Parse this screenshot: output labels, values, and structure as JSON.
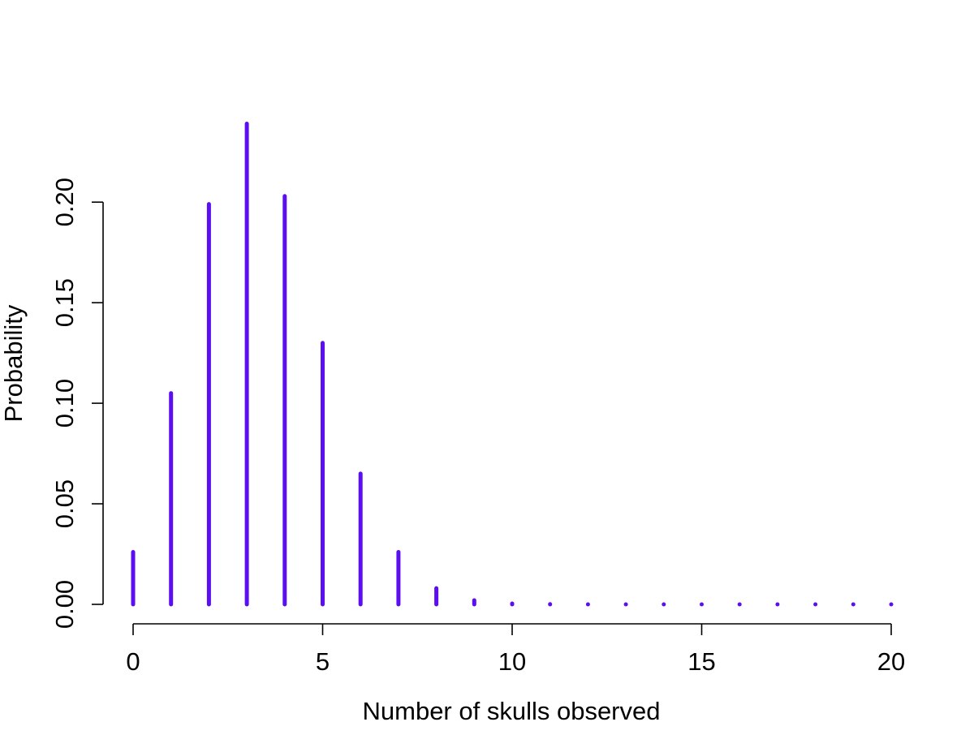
{
  "chart_data": {
    "type": "bar",
    "title": "",
    "xlabel": "Number of skulls observed",
    "ylabel": "Probability",
    "x": [
      0,
      1,
      2,
      3,
      4,
      5,
      6,
      7,
      8,
      9,
      10,
      11,
      12,
      13,
      14,
      15,
      16,
      17,
      18,
      19,
      20
    ],
    "values": [
      0.026,
      0.105,
      0.199,
      0.239,
      0.203,
      0.13,
      0.065,
      0.026,
      0.008,
      0.002,
      0.0004,
      0.0001,
      0.0,
      0.0,
      0.0,
      0.0,
      0.0,
      0.0,
      0.0,
      0.0,
      0.0
    ],
    "xlim": [
      0,
      20
    ],
    "ylim": [
      0,
      0.24
    ],
    "xticks": [
      0,
      5,
      10,
      15,
      20
    ],
    "xtick_labels": [
      "0",
      "5",
      "10",
      "15",
      "20"
    ],
    "yticks": [
      0.0,
      0.05,
      0.1,
      0.15,
      0.2
    ],
    "ytick_labels": [
      "0.00",
      "0.05",
      "0.10",
      "0.15",
      "0.20"
    ],
    "grid": false,
    "legend": "none",
    "bar_color": "#5b0ff0"
  }
}
